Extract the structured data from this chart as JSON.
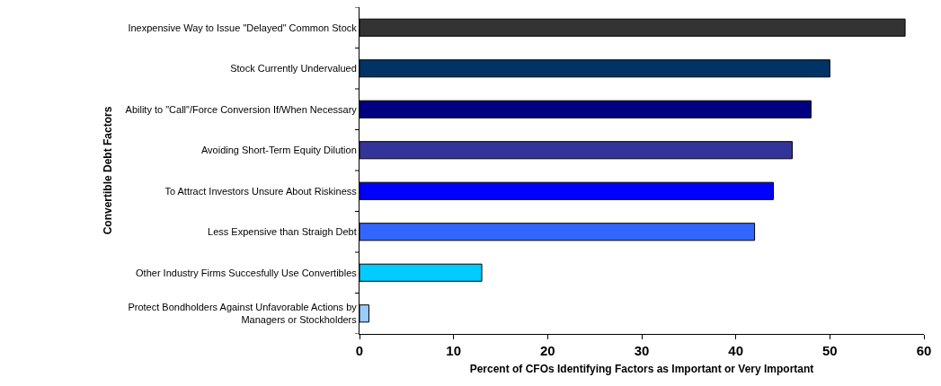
{
  "chart_data": {
    "type": "bar",
    "orientation": "horizontal",
    "xlabel": "Percent of CFOs Identifying Factors as Important or Very Important",
    "ylabel": "Convertible Debt Factors",
    "categories": [
      "Inexpensive Way to Issue \"Delayed\" Common Stock",
      "Stock Currently Undervalued",
      "Ability to \"Call\"/Force Conversion If/When Necessary",
      "Avoiding Short-Term Equity Dilution",
      "To Attract Investors Unsure About Riskiness",
      "Less Expensive than Straigh Debt",
      "Other Industry Firms Succesfully Use Convertibles",
      "Protect Bondholders Against Unfavorable Actions by Managers or Stockholders"
    ],
    "values": [
      58,
      50,
      48,
      46,
      44,
      42,
      13,
      1
    ],
    "colors": [
      "#333333",
      "#003366",
      "#000080",
      "#333399",
      "#0000ff",
      "#3366ff",
      "#00ccff",
      "#99ccff"
    ],
    "xlim": [
      0,
      60
    ],
    "xticks": [
      0,
      10,
      20,
      30,
      40,
      50,
      60
    ],
    "grid": false,
    "legend": false
  }
}
